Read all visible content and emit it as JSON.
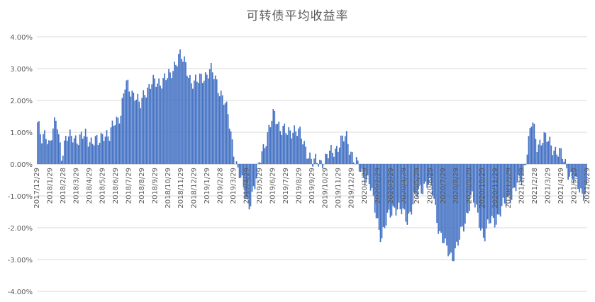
{
  "chart_data": {
    "type": "bar",
    "title": "可转债平均收益率",
    "xlabel": "",
    "ylabel": "",
    "ylim": [
      -4.0,
      4.0
    ],
    "y_ticks": [
      "4.00%",
      "3.00%",
      "2.00%",
      "1.00%",
      "0.00%",
      "-1.00%",
      "-2.00%",
      "-3.00%",
      "-4.00%"
    ],
    "grid": true,
    "legend": "none",
    "color": "#4472C4",
    "x_tick_labels": [
      "2017/12/29",
      "2018/1/29",
      "2018/2/28",
      "2018/3/29",
      "2018/4/29",
      "2018/5/29",
      "2018/6/29",
      "2018/7/29",
      "2018/8/29",
      "2018/9/29",
      "2018/10/29",
      "2018/11/29",
      "2018/12/29",
      "2019/1/29",
      "2019/2/28",
      "2019/3/29",
      "2019/4/29",
      "2019/5/29",
      "2019/6/29",
      "2019/7/29",
      "2019/8/29",
      "2019/9/29",
      "2019/10/29",
      "2019/11/29",
      "2019/12/29",
      "2020/1/29",
      "2020/2/29",
      "2020/3/29",
      "2020/4/29",
      "2020/5/29",
      "2020/6/29",
      "2020/7/29",
      "2020/8/29",
      "2020/9/29",
      "2020/10/29",
      "2020/11/29",
      "2020/12/29",
      "2021/1/29",
      "2021/2/28",
      "2021/3/29",
      "2021/4/29",
      "2021/5/29",
      "2021/6/29"
    ],
    "anchors": [
      [
        0,
        1.2
      ],
      [
        0.25,
        0.8
      ],
      [
        0.5,
        1.1
      ],
      [
        0.75,
        0.5
      ],
      [
        1,
        1.1
      ],
      [
        1.2,
        1.45
      ],
      [
        1.5,
        0.3
      ],
      [
        1.8,
        0.75
      ],
      [
        2.2,
        0.95
      ],
      [
        2.6,
        0.7
      ],
      [
        3,
        0.95
      ],
      [
        3.4,
        0.7
      ],
      [
        3.8,
        0.65
      ],
      [
        4.1,
        1.05
      ],
      [
        4.5,
        0.8
      ],
      [
        4.8,
        1.35
      ],
      [
        5.2,
        1.6
      ],
      [
        5.5,
        2.5
      ],
      [
        5.8,
        2.35
      ],
      [
        6.1,
        2.2
      ],
      [
        6.4,
        1.75
      ],
      [
        6.7,
        2.3
      ],
      [
        7.1,
        2.55
      ],
      [
        7.5,
        2.5
      ],
      [
        7.9,
        2.75
      ],
      [
        8.3,
        2.7
      ],
      [
        8.6,
        3.2
      ],
      [
        8.85,
        3.5
      ],
      [
        9.2,
        3.1
      ],
      [
        9.6,
        2.65
      ],
      [
        10,
        2.55
      ],
      [
        10.4,
        2.8
      ],
      [
        10.8,
        2.95
      ],
      [
        11.2,
        2.55
      ],
      [
        11.6,
        2.1
      ],
      [
        11.9,
        1.5
      ],
      [
        12.2,
        0.6
      ],
      [
        12.5,
        -0.15
      ],
      [
        12.9,
        -0.85
      ],
      [
        13.2,
        -1.25
      ],
      [
        13.6,
        -0.7
      ],
      [
        14,
        0.45
      ],
      [
        14.4,
        0.9
      ],
      [
        14.8,
        1.65
      ],
      [
        15.2,
        1.1
      ],
      [
        15.6,
        0.95
      ],
      [
        16,
        1.15
      ],
      [
        16.4,
        0.9
      ],
      [
        16.8,
        0.5
      ],
      [
        17.2,
        0.0
      ],
      [
        17.6,
        0.1
      ],
      [
        18,
        0.15
      ],
      [
        18.5,
        0.45
      ],
      [
        19,
        0.7
      ],
      [
        19.3,
        0.85
      ],
      [
        19.6,
        0.4
      ],
      [
        19.9,
        0.0
      ],
      [
        20.2,
        -0.25
      ],
      [
        20.7,
        -0.5
      ],
      [
        21.1,
        -1.5
      ],
      [
        21.5,
        -2.3
      ],
      [
        21.9,
        -1.7
      ],
      [
        22.3,
        -1.3
      ],
      [
        22.7,
        -1.5
      ],
      [
        23.1,
        -1.7
      ],
      [
        23.5,
        -1.2
      ],
      [
        23.9,
        -0.8
      ],
      [
        24.3,
        -0.55
      ],
      [
        24.7,
        -0.9
      ],
      [
        25.1,
        -2.1
      ],
      [
        25.5,
        -2.65
      ],
      [
        25.9,
        -2.9
      ],
      [
        26.3,
        -2.5
      ],
      [
        26.7,
        -1.8
      ],
      [
        27.1,
        -1.0
      ],
      [
        27.5,
        -1.6
      ],
      [
        27.9,
        -2.3
      ],
      [
        28.3,
        -1.8
      ],
      [
        28.7,
        -1.7
      ],
      [
        29.1,
        -1.35
      ],
      [
        29.5,
        -1.0
      ],
      [
        29.9,
        -0.75
      ],
      [
        30.3,
        -0.45
      ],
      [
        30.6,
        0.5
      ],
      [
        30.9,
        1.35
      ],
      [
        31.2,
        0.6
      ],
      [
        31.6,
        0.85
      ],
      [
        32,
        0.65
      ],
      [
        32.4,
        0.45
      ],
      [
        32.8,
        0.2
      ],
      [
        33.2,
        -0.25
      ],
      [
        33.6,
        -0.6
      ],
      [
        34,
        -0.9
      ],
      [
        34.3,
        -0.8
      ]
    ]
  }
}
